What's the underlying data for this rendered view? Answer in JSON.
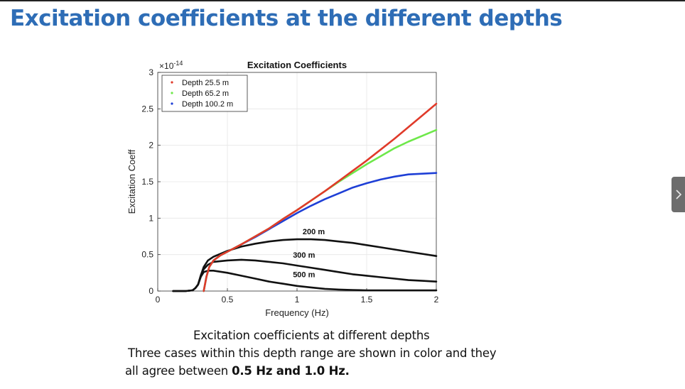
{
  "slide": {
    "title": "Excitation coefficients at the different depths",
    "caption_line1": "Excitation coefficients at different depths",
    "caption_line2": "Three cases within this depth range are shown in color and they",
    "caption_line3_prefix": "all agree between ",
    "caption_line3_bold": "0.5 Hz and 1.0 Hz."
  },
  "nav": {
    "next_icon": "chevron-right-icon",
    "button_color": "#6d6d6d"
  },
  "chart_data": {
    "type": "line",
    "title": "Excitation Coefficients",
    "xlabel": "Frequency (Hz)",
    "ylabel": "Excitation Coeff",
    "y_exponent_label": "10",
    "y_exponent_power": "-14",
    "xlim": [
      0,
      2
    ],
    "ylim": [
      0,
      3
    ],
    "xticks": [
      0,
      0.5,
      1,
      1.5,
      2
    ],
    "xtick_labels": [
      "0",
      "0.5",
      "1",
      "1.5",
      "2"
    ],
    "yticks": [
      0,
      0.5,
      1,
      1.5,
      2,
      2.5,
      3
    ],
    "ytick_labels": [
      "0",
      "0.5",
      "1",
      "1.5",
      "2",
      "2.5",
      "3"
    ],
    "grid": true,
    "legend_position": "top-left",
    "series": [
      {
        "name": "Depth 25.5 m",
        "color": "#e03a2a",
        "in_legend": true,
        "x": [
          0.33,
          0.35,
          0.37,
          0.4,
          0.45,
          0.5,
          0.6,
          0.7,
          0.8,
          0.9,
          1.0,
          1.1,
          1.2,
          1.3,
          1.4,
          1.5,
          1.6,
          1.7,
          1.8,
          1.9,
          2.0
        ],
        "y": [
          0.0,
          0.2,
          0.33,
          0.42,
          0.49,
          0.54,
          0.64,
          0.75,
          0.86,
          0.99,
          1.11,
          1.24,
          1.37,
          1.51,
          1.65,
          1.79,
          1.94,
          2.09,
          2.25,
          2.41,
          2.57
        ]
      },
      {
        "name": "Depth 65.2 m",
        "color": "#6ee84a",
        "in_legend": true,
        "x": [
          0.33,
          0.35,
          0.37,
          0.4,
          0.45,
          0.5,
          0.6,
          0.7,
          0.8,
          0.9,
          1.0,
          1.1,
          1.2,
          1.3,
          1.4,
          1.5,
          1.6,
          1.7,
          1.8,
          1.9,
          2.0
        ],
        "y": [
          0.0,
          0.2,
          0.33,
          0.42,
          0.49,
          0.54,
          0.64,
          0.75,
          0.86,
          0.99,
          1.11,
          1.24,
          1.37,
          1.5,
          1.62,
          1.74,
          1.85,
          1.96,
          2.05,
          2.13,
          2.21
        ]
      },
      {
        "name": "Depth 100.2 m",
        "color": "#1e3fd6",
        "in_legend": true,
        "x": [
          0.33,
          0.35,
          0.37,
          0.4,
          0.45,
          0.5,
          0.6,
          0.7,
          0.8,
          0.9,
          1.0,
          1.1,
          1.2,
          1.3,
          1.4,
          1.5,
          1.6,
          1.7,
          1.8,
          1.9,
          2.0
        ],
        "y": [
          0.0,
          0.2,
          0.33,
          0.42,
          0.49,
          0.54,
          0.64,
          0.74,
          0.85,
          0.96,
          1.07,
          1.17,
          1.26,
          1.34,
          1.42,
          1.48,
          1.53,
          1.57,
          1.6,
          1.61,
          1.62
        ]
      },
      {
        "name": "200 m",
        "color": "#111111",
        "in_legend": false,
        "x": [
          0.11,
          0.2,
          0.25,
          0.27,
          0.29,
          0.31,
          0.33,
          0.36,
          0.4,
          0.5,
          0.6,
          0.7,
          0.8,
          0.9,
          1.0,
          1.1,
          1.2,
          1.3,
          1.4,
          1.5,
          1.6,
          1.7,
          1.8,
          1.9,
          2.0
        ],
        "y": [
          0.0,
          0.0,
          0.01,
          0.04,
          0.09,
          0.22,
          0.33,
          0.42,
          0.47,
          0.55,
          0.61,
          0.65,
          0.68,
          0.7,
          0.71,
          0.71,
          0.7,
          0.68,
          0.66,
          0.63,
          0.6,
          0.57,
          0.54,
          0.51,
          0.48
        ]
      },
      {
        "name": "300 m",
        "color": "#111111",
        "in_legend": false,
        "x": [
          0.11,
          0.2,
          0.25,
          0.27,
          0.29,
          0.31,
          0.33,
          0.36,
          0.4,
          0.5,
          0.6,
          0.7,
          0.8,
          0.9,
          1.0,
          1.1,
          1.2,
          1.3,
          1.4,
          1.5,
          1.6,
          1.7,
          1.8,
          1.9,
          2.0
        ],
        "y": [
          0.0,
          0.0,
          0.01,
          0.04,
          0.09,
          0.22,
          0.3,
          0.36,
          0.4,
          0.42,
          0.43,
          0.42,
          0.4,
          0.38,
          0.35,
          0.32,
          0.29,
          0.26,
          0.23,
          0.21,
          0.19,
          0.17,
          0.15,
          0.14,
          0.13
        ]
      },
      {
        "name": "500 m",
        "color": "#111111",
        "in_legend": false,
        "x": [
          0.11,
          0.2,
          0.25,
          0.27,
          0.29,
          0.31,
          0.33,
          0.36,
          0.4,
          0.5,
          0.6,
          0.7,
          0.8,
          0.9,
          1.0,
          1.1,
          1.2,
          1.3,
          1.4,
          1.5,
          1.6,
          1.7,
          1.8,
          1.9,
          2.0
        ],
        "y": [
          0.0,
          0.0,
          0.01,
          0.04,
          0.09,
          0.2,
          0.26,
          0.28,
          0.28,
          0.25,
          0.21,
          0.17,
          0.13,
          0.1,
          0.07,
          0.05,
          0.03,
          0.02,
          0.015,
          0.01,
          0.01,
          0.01,
          0.01,
          0.01,
          0.01
        ]
      }
    ],
    "annotations": [
      {
        "text": "200 m",
        "x": 1.12,
        "y": 0.78
      },
      {
        "text": "300 m",
        "x": 1.05,
        "y": 0.46
      },
      {
        "text": "500 m",
        "x": 1.05,
        "y": 0.19
      }
    ]
  }
}
